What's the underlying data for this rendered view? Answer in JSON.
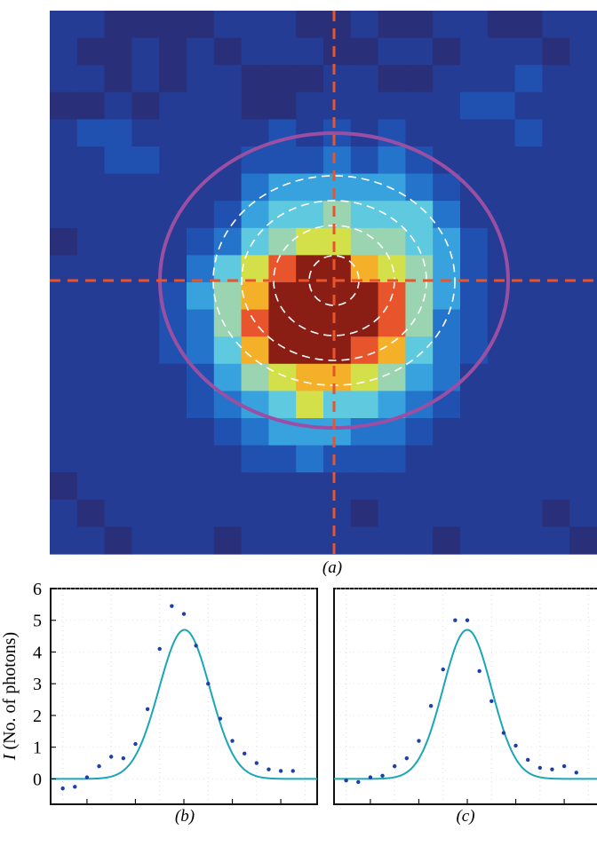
{
  "panels": {
    "a": {
      "label": "(a)",
      "chart_type": "heatmap",
      "grid_cols": 20,
      "grid_rows": 20,
      "colormap": "jet",
      "crosshair_color": "#e8552c",
      "ellipse_color": "#9b4fa3",
      "contour_color": "#ffffff",
      "peak_cell": [
        10,
        10
      ]
    },
    "b": {
      "label": "(b)",
      "x_ticks": [
        "",
        "",
        "",
        "",
        "",
        ""
      ],
      "y_ticks": [
        "6",
        "5",
        "4",
        "3",
        "2",
        "1",
        "0"
      ]
    },
    "c": {
      "label": "(c)",
      "x_ticks": [
        "",
        "",
        "",
        "",
        ""
      ]
    }
  },
  "y_axis_label_italic": "I",
  "y_axis_label_rest": " (No. of photons)",
  "colors": {
    "fit_line": "#1aa6b7",
    "points": "#1c3faa",
    "axis": "#111111"
  },
  "chart_data": [
    {
      "type": "heatmap",
      "panel": "a",
      "description_values": "photon intensity image, peak centred at column 10, row 10",
      "values": [
        [
          1,
          1,
          0,
          0,
          0,
          0,
          1,
          1,
          1,
          0,
          0,
          1,
          0,
          0,
          1,
          1,
          0,
          0,
          1,
          1
        ],
        [
          1,
          0,
          0,
          1,
          0,
          1,
          0,
          1,
          1,
          1,
          0,
          0,
          1,
          1,
          0,
          1,
          1,
          1,
          0,
          1
        ],
        [
          1,
          1,
          0,
          1,
          0,
          1,
          1,
          0,
          0,
          0,
          1,
          1,
          0,
          0,
          1,
          1,
          1,
          2,
          1,
          1
        ],
        [
          0,
          0,
          1,
          0,
          1,
          1,
          1,
          0,
          0,
          1,
          1,
          1,
          1,
          1,
          1,
          2,
          2,
          1,
          1,
          1
        ],
        [
          1,
          2,
          2,
          1,
          1,
          1,
          1,
          1,
          2,
          1,
          2,
          1,
          2,
          1,
          1,
          1,
          1,
          2,
          1,
          1
        ],
        [
          1,
          1,
          2,
          2,
          1,
          1,
          1,
          2,
          2,
          2,
          3,
          2,
          3,
          2,
          1,
          1,
          1,
          1,
          1,
          1
        ],
        [
          1,
          1,
          1,
          1,
          1,
          1,
          1,
          3,
          4,
          4,
          4,
          4,
          4,
          3,
          2,
          1,
          1,
          1,
          1,
          1
        ],
        [
          1,
          1,
          1,
          1,
          1,
          1,
          2,
          4,
          5,
          5,
          6,
          5,
          5,
          5,
          3,
          1,
          1,
          1,
          1,
          1
        ],
        [
          0,
          1,
          1,
          1,
          1,
          2,
          3,
          5,
          6,
          7,
          7,
          6,
          6,
          5,
          4,
          2,
          1,
          1,
          1,
          1
        ],
        [
          1,
          1,
          1,
          1,
          1,
          3,
          5,
          7,
          9,
          10,
          10,
          8,
          7,
          6,
          4,
          2,
          1,
          1,
          1,
          1
        ],
        [
          1,
          1,
          1,
          1,
          2,
          4,
          6,
          8,
          10,
          10,
          10,
          10,
          9,
          6,
          4,
          2,
          1,
          1,
          1,
          1
        ],
        [
          1,
          1,
          1,
          1,
          2,
          3,
          6,
          9,
          10,
          10,
          10,
          10,
          9,
          6,
          3,
          2,
          1,
          1,
          1,
          1
        ],
        [
          1,
          1,
          1,
          1,
          2,
          3,
          5,
          8,
          10,
          10,
          10,
          9,
          8,
          5,
          3,
          2,
          1,
          1,
          1,
          1
        ],
        [
          1,
          1,
          1,
          1,
          1,
          2,
          4,
          6,
          7,
          8,
          8,
          7,
          6,
          4,
          3,
          1,
          1,
          1,
          1,
          1
        ],
        [
          1,
          1,
          1,
          1,
          1,
          2,
          3,
          4,
          5,
          7,
          5,
          5,
          4,
          3,
          2,
          1,
          1,
          1,
          1,
          1
        ],
        [
          1,
          1,
          1,
          1,
          1,
          1,
          2,
          3,
          4,
          4,
          4,
          3,
          3,
          2,
          1,
          1,
          1,
          1,
          1,
          1
        ],
        [
          1,
          1,
          1,
          1,
          1,
          1,
          1,
          2,
          2,
          3,
          2,
          2,
          2,
          1,
          1,
          1,
          1,
          1,
          1,
          1
        ],
        [
          0,
          1,
          1,
          1,
          1,
          1,
          1,
          1,
          1,
          1,
          1,
          1,
          1,
          1,
          1,
          1,
          1,
          1,
          1,
          1
        ],
        [
          1,
          0,
          1,
          1,
          1,
          1,
          1,
          1,
          1,
          1,
          1,
          0,
          1,
          1,
          1,
          1,
          1,
          1,
          0,
          1
        ],
        [
          1,
          1,
          0,
          1,
          1,
          1,
          0,
          1,
          1,
          1,
          1,
          1,
          1,
          1,
          0,
          1,
          1,
          1,
          1,
          0
        ]
      ]
    },
    {
      "type": "scatter",
      "panel": "b",
      "ylim": [
        -0.8,
        6
      ],
      "xlim": [
        -11,
        11
      ],
      "points": [
        [
          -10,
          -0.3
        ],
        [
          -9,
          -0.25
        ],
        [
          -8,
          0.05
        ],
        [
          -7,
          0.4
        ],
        [
          -6,
          0.7
        ],
        [
          -5,
          0.65
        ],
        [
          -4,
          1.1
        ],
        [
          -3,
          2.2
        ],
        [
          -2,
          4.1
        ],
        [
          -1,
          5.45
        ],
        [
          0,
          5.2
        ],
        [
          1,
          4.2
        ],
        [
          2,
          3.0
        ],
        [
          3,
          1.9
        ],
        [
          4,
          1.2
        ],
        [
          5,
          0.8
        ],
        [
          6,
          0.5
        ],
        [
          7,
          0.3
        ],
        [
          8,
          0.25
        ],
        [
          9,
          0.25
        ]
      ],
      "fit": {
        "model": "gaussian",
        "amplitude": 4.7,
        "center": 0.05,
        "sigma": 2.1,
        "offset": 0
      }
    },
    {
      "type": "scatter",
      "panel": "c",
      "ylim": [
        -0.8,
        6
      ],
      "xlim": [
        -11,
        11
      ],
      "points": [
        [
          -10,
          -0.05
        ],
        [
          -9,
          -0.1
        ],
        [
          -8,
          0.05
        ],
        [
          -7,
          0.1
        ],
        [
          -6,
          0.4
        ],
        [
          -5,
          0.65
        ],
        [
          -4,
          1.2
        ],
        [
          -3,
          2.3
        ],
        [
          -2,
          3.45
        ],
        [
          -1,
          5.0
        ],
        [
          0,
          5.0
        ],
        [
          1,
          3.4
        ],
        [
          2,
          2.45
        ],
        [
          3,
          1.45
        ],
        [
          4,
          1.05
        ],
        [
          5,
          0.6
        ],
        [
          6,
          0.35
        ],
        [
          7,
          0.3
        ],
        [
          8,
          0.4
        ],
        [
          9,
          0.2
        ]
      ],
      "fit": {
        "model": "gaussian",
        "amplitude": 4.7,
        "center": 0,
        "sigma": 2.0,
        "offset": 0
      }
    }
  ]
}
